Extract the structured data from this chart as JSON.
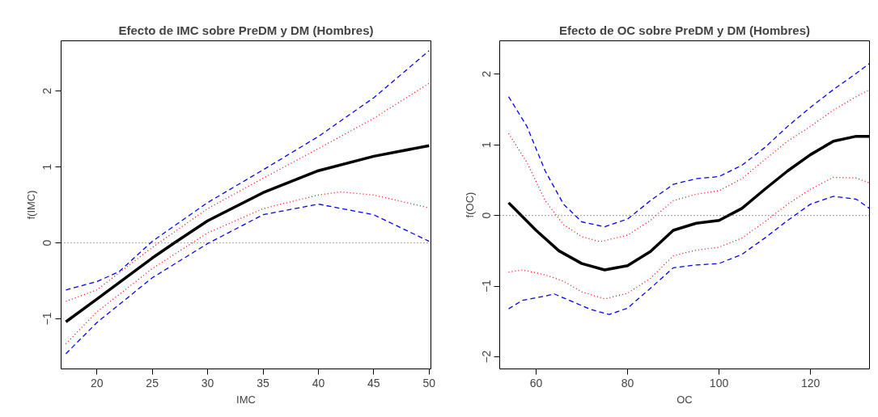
{
  "chart_data": [
    {
      "type": "line",
      "title": "Efecto de IMC sobre PreDM y DM (Hombres)",
      "xlabel": "IMC",
      "ylabel": "f(IMC)",
      "xlim": [
        16.77,
        50.16
      ],
      "ylim": [
        -1.66,
        2.66
      ],
      "xticks": [
        20,
        25,
        30,
        35,
        40,
        45,
        50
      ],
      "yticks": [
        -1,
        0,
        1,
        2
      ],
      "ref_lines": [
        {
          "axis": "y",
          "value": 0,
          "color": "#555555",
          "line_style": "dotted"
        }
      ],
      "series": [
        {
          "color": "#000000",
          "line_style": "solid",
          "x": [
            17.2,
            20,
            25,
            27,
            30,
            35,
            40,
            45,
            50
          ],
          "values": [
            -1.04,
            -0.74,
            -0.2,
            0,
            0.29,
            0.66,
            0.95,
            1.14,
            1.28
          ]
        },
        {
          "color": "#0000ff",
          "line_style": "dashed",
          "x": [
            17.2,
            20,
            22,
            25,
            30,
            35,
            40,
            45,
            50
          ],
          "values": [
            -0.62,
            -0.51,
            -0.38,
            0.02,
            0.53,
            0.96,
            1.4,
            1.91,
            2.53
          ]
        },
        {
          "color": "#ff0000",
          "line_style": "dotted",
          "x": [
            17.2,
            20,
            25,
            30,
            35,
            40,
            45,
            50
          ],
          "values": [
            -0.77,
            -0.62,
            -0.06,
            0.45,
            0.85,
            1.24,
            1.64,
            2.1
          ]
        },
        {
          "color": "#ff0000",
          "line_style": "dotted",
          "x": [
            17.2,
            20,
            25,
            30,
            35,
            40,
            42,
            45,
            50
          ],
          "values": [
            -1.33,
            -0.91,
            -0.34,
            0.13,
            0.45,
            0.63,
            0.67,
            0.63,
            0.46
          ]
        },
        {
          "color": "#0000ff",
          "line_style": "dashed",
          "x": [
            17.2,
            20,
            25,
            30,
            35,
            40,
            45,
            50
          ],
          "values": [
            -1.46,
            -1.05,
            -0.46,
            -0.01,
            0.37,
            0.51,
            0.37,
            0.02
          ]
        }
      ]
    },
    {
      "type": "line",
      "title": "Efecto de OC sobre PreDM y DM (Hombres)",
      "xlabel": "OC",
      "ylabel": "f(OC)",
      "xlim": [
        52.05,
        132.9
      ],
      "ylim": [
        -2.17,
        2.47
      ],
      "xticks": [
        60,
        80,
        100,
        120
      ],
      "yticks": [
        -2,
        -1,
        0,
        1,
        2
      ],
      "ref_lines": [
        {
          "axis": "y",
          "value": 0,
          "color": "#555555",
          "line_style": "dotted"
        }
      ],
      "series": [
        {
          "color": "#000000",
          "line_style": "solid",
          "x": [
            54,
            60,
            65,
            70,
            75,
            80,
            85,
            90,
            95,
            100,
            105,
            110,
            115,
            120,
            125,
            130,
            132.9
          ],
          "values": [
            0.18,
            -0.21,
            -0.5,
            -0.68,
            -0.77,
            -0.71,
            -0.51,
            -0.21,
            -0.11,
            -0.07,
            0.1,
            0.37,
            0.63,
            0.86,
            1.05,
            1.12,
            1.12
          ]
        },
        {
          "color": "#0000ff",
          "line_style": "dashed",
          "x": [
            54,
            58,
            62,
            66,
            70,
            75,
            80,
            85,
            90,
            95,
            100,
            105,
            110,
            115,
            120,
            125,
            130,
            132.9
          ],
          "values": [
            1.68,
            1.26,
            0.63,
            0.16,
            -0.09,
            -0.16,
            -0.05,
            0.21,
            0.44,
            0.52,
            0.55,
            0.71,
            0.96,
            1.26,
            1.53,
            1.78,
            2.01,
            2.15
          ]
        },
        {
          "color": "#ff0000",
          "line_style": "dotted",
          "x": [
            54,
            58,
            62,
            66,
            70,
            74,
            80,
            85,
            90,
            95,
            100,
            105,
            110,
            115,
            120,
            125,
            130,
            132.9
          ],
          "values": [
            1.16,
            0.75,
            0.21,
            -0.13,
            -0.3,
            -0.37,
            -0.28,
            -0.07,
            0.21,
            0.3,
            0.35,
            0.52,
            0.79,
            1.05,
            1.26,
            1.49,
            1.68,
            1.78
          ]
        },
        {
          "color": "#ff0000",
          "line_style": "dotted",
          "x": [
            54,
            57,
            62,
            66,
            70,
            75,
            80,
            85,
            90,
            95,
            100,
            105,
            110,
            115,
            120,
            125,
            130,
            132.9
          ],
          "values": [
            -0.8,
            -0.77,
            -0.84,
            -0.93,
            -1.08,
            -1.18,
            -1.1,
            -0.89,
            -0.57,
            -0.49,
            -0.45,
            -0.32,
            -0.09,
            0.16,
            0.37,
            0.54,
            0.53,
            0.46
          ]
        },
        {
          "color": "#0000ff",
          "line_style": "dashed",
          "x": [
            54,
            57,
            62,
            64,
            68,
            72,
            76,
            80,
            85,
            90,
            95,
            100,
            105,
            110,
            115,
            120,
            125,
            130,
            132.9
          ],
          "values": [
            -1.32,
            -1.2,
            -1.14,
            -1.11,
            -1.22,
            -1.33,
            -1.4,
            -1.31,
            -1.03,
            -0.74,
            -0.7,
            -0.68,
            -0.55,
            -0.32,
            -0.07,
            0.16,
            0.27,
            0.23,
            0.1
          ]
        }
      ]
    }
  ]
}
